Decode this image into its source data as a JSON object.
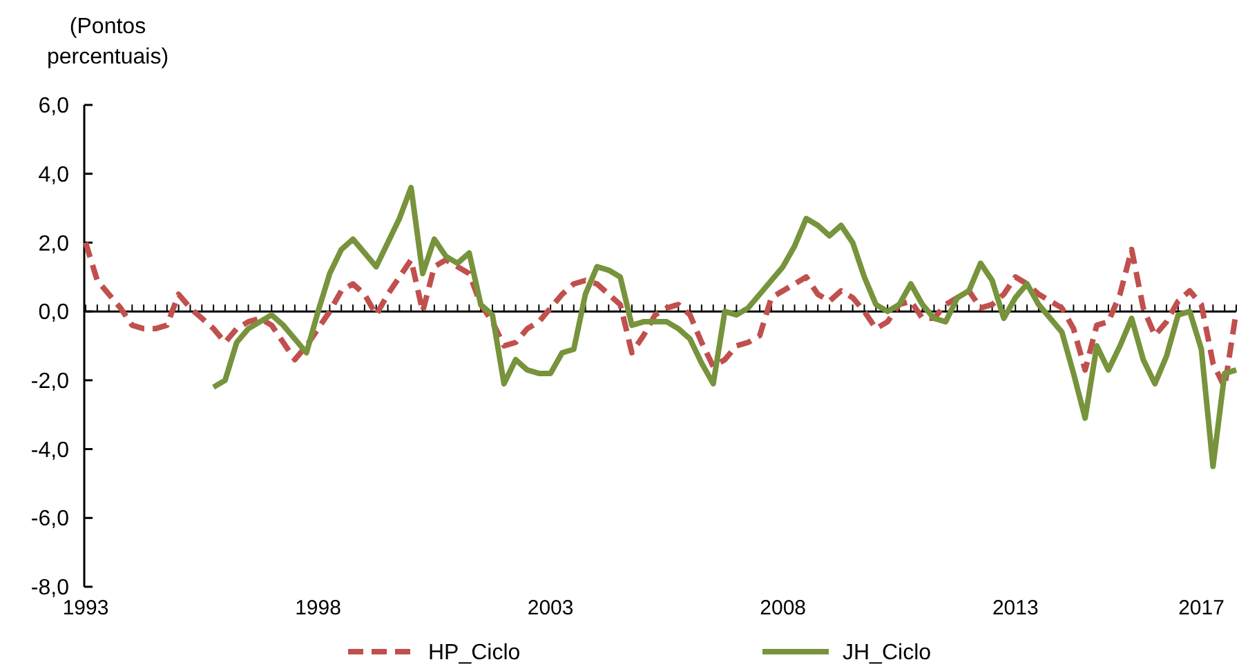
{
  "chart_data": {
    "type": "line",
    "ylabel": "(Pontos percentuais)",
    "ylim": [
      -8,
      6
    ],
    "yticks": [
      {
        "value": 6,
        "label": "6,0"
      },
      {
        "value": 4,
        "label": "4,0"
      },
      {
        "value": 2,
        "label": "2,0"
      },
      {
        "value": 0,
        "label": "0,0"
      },
      {
        "value": -2,
        "label": "-2,0"
      },
      {
        "value": -4,
        "label": "-4,0"
      },
      {
        "value": -6,
        "label": "-6,0"
      },
      {
        "value": -8,
        "label": "-8,0"
      }
    ],
    "categories": [
      "1993",
      null,
      null,
      null,
      null,
      null,
      null,
      null,
      null,
      null,
      null,
      null,
      null,
      null,
      null,
      null,
      null,
      null,
      null,
      null,
      "1998",
      null,
      null,
      null,
      null,
      null,
      null,
      null,
      null,
      null,
      null,
      null,
      null,
      null,
      null,
      null,
      null,
      null,
      null,
      null,
      "2003",
      null,
      null,
      null,
      null,
      null,
      null,
      null,
      null,
      null,
      null,
      null,
      null,
      null,
      null,
      null,
      null,
      null,
      null,
      null,
      "2008",
      null,
      null,
      null,
      null,
      null,
      null,
      null,
      null,
      null,
      null,
      null,
      null,
      null,
      null,
      null,
      null,
      null,
      null,
      null,
      "2013",
      null,
      null,
      null,
      null,
      null,
      null,
      null,
      null,
      null,
      null,
      null,
      null,
      null,
      null,
      null,
      "2017",
      null,
      null,
      null
    ],
    "legend": "bottom",
    "series": [
      {
        "name": "HP_Ciclo",
        "color": "#c0504d",
        "line_style": "dashed",
        "values": [
          2.0,
          0.9,
          0.5,
          0.1,
          -0.4,
          -0.5,
          -0.5,
          -0.4,
          0.5,
          0.1,
          -0.2,
          -0.5,
          -0.9,
          -0.5,
          -0.3,
          -0.2,
          -0.4,
          -0.9,
          -1.4,
          -1.0,
          -0.5,
          0.0,
          0.6,
          0.8,
          0.5,
          -0.1,
          0.5,
          1.0,
          1.5,
          0.0,
          1.3,
          1.5,
          1.3,
          1.1,
          0.2,
          -0.3,
          -1.0,
          -0.9,
          -0.5,
          -0.3,
          0.1,
          0.5,
          0.8,
          0.9,
          0.8,
          0.5,
          0.2,
          -1.2,
          -0.7,
          -0.1,
          0.1,
          0.2,
          -0.1,
          -0.9,
          -1.6,
          -1.4,
          -1.0,
          -0.9,
          -0.7,
          0.4,
          0.6,
          0.8,
          1.0,
          0.5,
          0.3,
          0.6,
          0.4,
          0.0,
          -0.5,
          -0.3,
          0.2,
          0.3,
          -0.2,
          -0.2,
          0.2,
          0.4,
          0.6,
          0.1,
          0.2,
          0.5,
          1.0,
          0.8,
          0.5,
          0.3,
          0.1,
          -0.5,
          -1.7,
          -0.4,
          -0.3,
          0.5,
          1.8,
          0.1,
          -0.7,
          -0.3,
          0.3,
          0.6,
          0.2,
          -1.5,
          -2.2,
          0.0
        ]
      },
      {
        "name": "JH_Ciclo",
        "color": "#77933c",
        "line_style": "solid",
        "values": [
          null,
          null,
          null,
          null,
          null,
          null,
          null,
          null,
          null,
          null,
          null,
          -2.2,
          -2.0,
          -0.9,
          -0.5,
          -0.3,
          -0.1,
          -0.4,
          -0.8,
          -1.2,
          0.0,
          1.1,
          1.8,
          2.1,
          1.7,
          1.3,
          2.0,
          2.7,
          3.6,
          1.1,
          2.1,
          1.6,
          1.4,
          1.7,
          0.2,
          -0.1,
          -2.1,
          -1.4,
          -1.7,
          -1.8,
          -1.8,
          -1.2,
          -1.1,
          0.5,
          1.3,
          1.2,
          1.0,
          -0.4,
          -0.3,
          -0.3,
          -0.3,
          -0.5,
          -0.8,
          -1.5,
          -2.1,
          0.0,
          -0.1,
          0.1,
          0.5,
          0.9,
          1.3,
          1.9,
          2.7,
          2.5,
          2.2,
          2.5,
          2.0,
          1.0,
          0.2,
          0.0,
          0.2,
          0.8,
          0.2,
          -0.2,
          -0.3,
          0.4,
          0.6,
          1.4,
          0.9,
          -0.2,
          0.4,
          0.8,
          0.2,
          -0.2,
          -0.6,
          -1.8,
          -3.1,
          -1.0,
          -1.7,
          -1.0,
          -0.2,
          -1.4,
          -2.1,
          -1.3,
          -0.1,
          0.0,
          -1.1,
          -4.5,
          -1.8,
          -1.7
        ]
      }
    ]
  }
}
